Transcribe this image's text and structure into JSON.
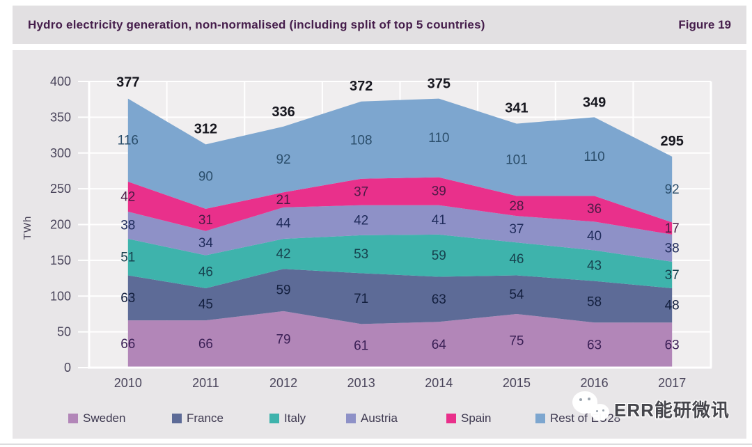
{
  "page": {
    "title": "Hydro electricity generation, non-normalised (including split of top 5 countries)",
    "figure_label": "Figure 19"
  },
  "chart_data": {
    "type": "area",
    "stacked": true,
    "title": "Hydro electricity generation, non-normalised (including split of top 5 countries)",
    "xlabel": "",
    "ylabel": "TWh",
    "x": [
      "2010",
      "2011",
      "2012",
      "2013",
      "2014",
      "2015",
      "2016",
      "2017"
    ],
    "ylim": [
      0,
      400
    ],
    "y_ticks": [
      0,
      50,
      100,
      150,
      200,
      250,
      300,
      350,
      400
    ],
    "grid": true,
    "legend_position": "bottom",
    "series": [
      {
        "name": "Sweden",
        "color": "#b286b8",
        "label_color": "#3a1f55",
        "values": [
          66,
          66,
          79,
          61,
          64,
          75,
          63,
          63
        ]
      },
      {
        "name": "France",
        "color": "#5d6b97",
        "label_color": "#131f3e",
        "values": [
          63,
          45,
          59,
          71,
          63,
          54,
          58,
          48
        ]
      },
      {
        "name": "Italy",
        "color": "#3eb3ac",
        "label_color": "#16414e",
        "values": [
          51,
          46,
          42,
          53,
          59,
          46,
          43,
          37
        ]
      },
      {
        "name": "Austria",
        "color": "#8e91c7",
        "label_color": "#202c5c",
        "values": [
          38,
          34,
          44,
          42,
          41,
          37,
          40,
          38
        ]
      },
      {
        "name": "Spain",
        "color": "#e9308b",
        "label_color": "#4b1a45",
        "values": [
          42,
          31,
          21,
          37,
          39,
          28,
          36,
          17
        ]
      },
      {
        "name": "Rest of EU28",
        "color": "#7da6cf",
        "label_color": "#2b4e6b",
        "values": [
          116,
          90,
          92,
          108,
          110,
          101,
          110,
          92
        ]
      }
    ],
    "totals": [
      377,
      312,
      336,
      372,
      375,
      341,
      349,
      295
    ]
  },
  "watermark": {
    "text": "ERR能研微讯"
  }
}
